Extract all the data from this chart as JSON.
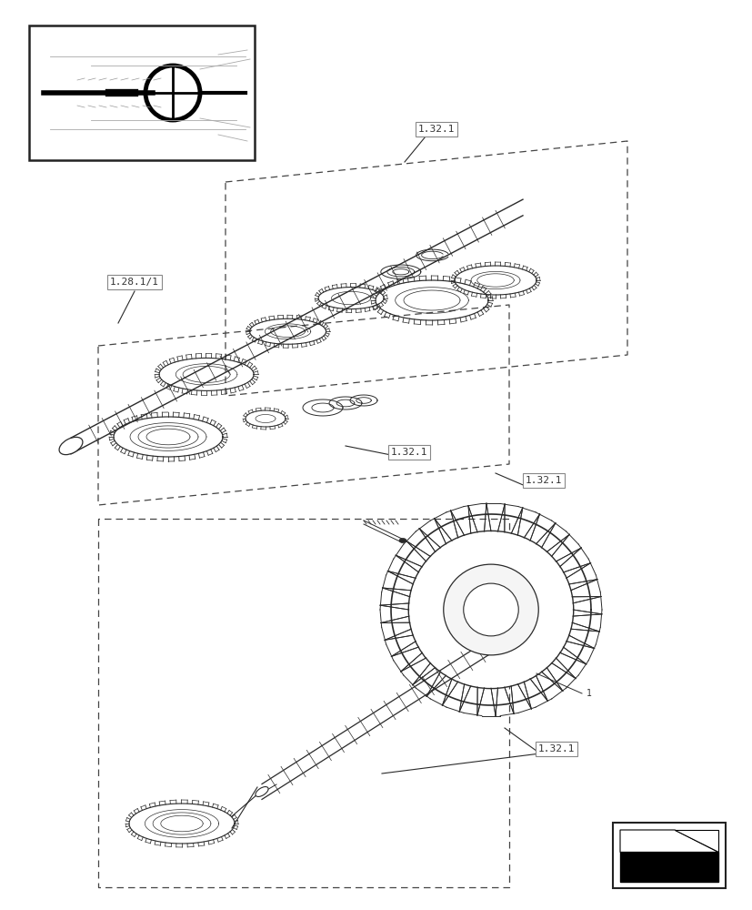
{
  "bg_color": "#ffffff",
  "line_color": "#2a2a2a",
  "dashed_color": "#444444",
  "label_color": "#333333",
  "labels": {
    "ref1": "1.32.1",
    "ref2": "1.28.1/1",
    "ref3": "1.32.1",
    "ref4": "1.32.1",
    "ref5": "1.32.1"
  }
}
